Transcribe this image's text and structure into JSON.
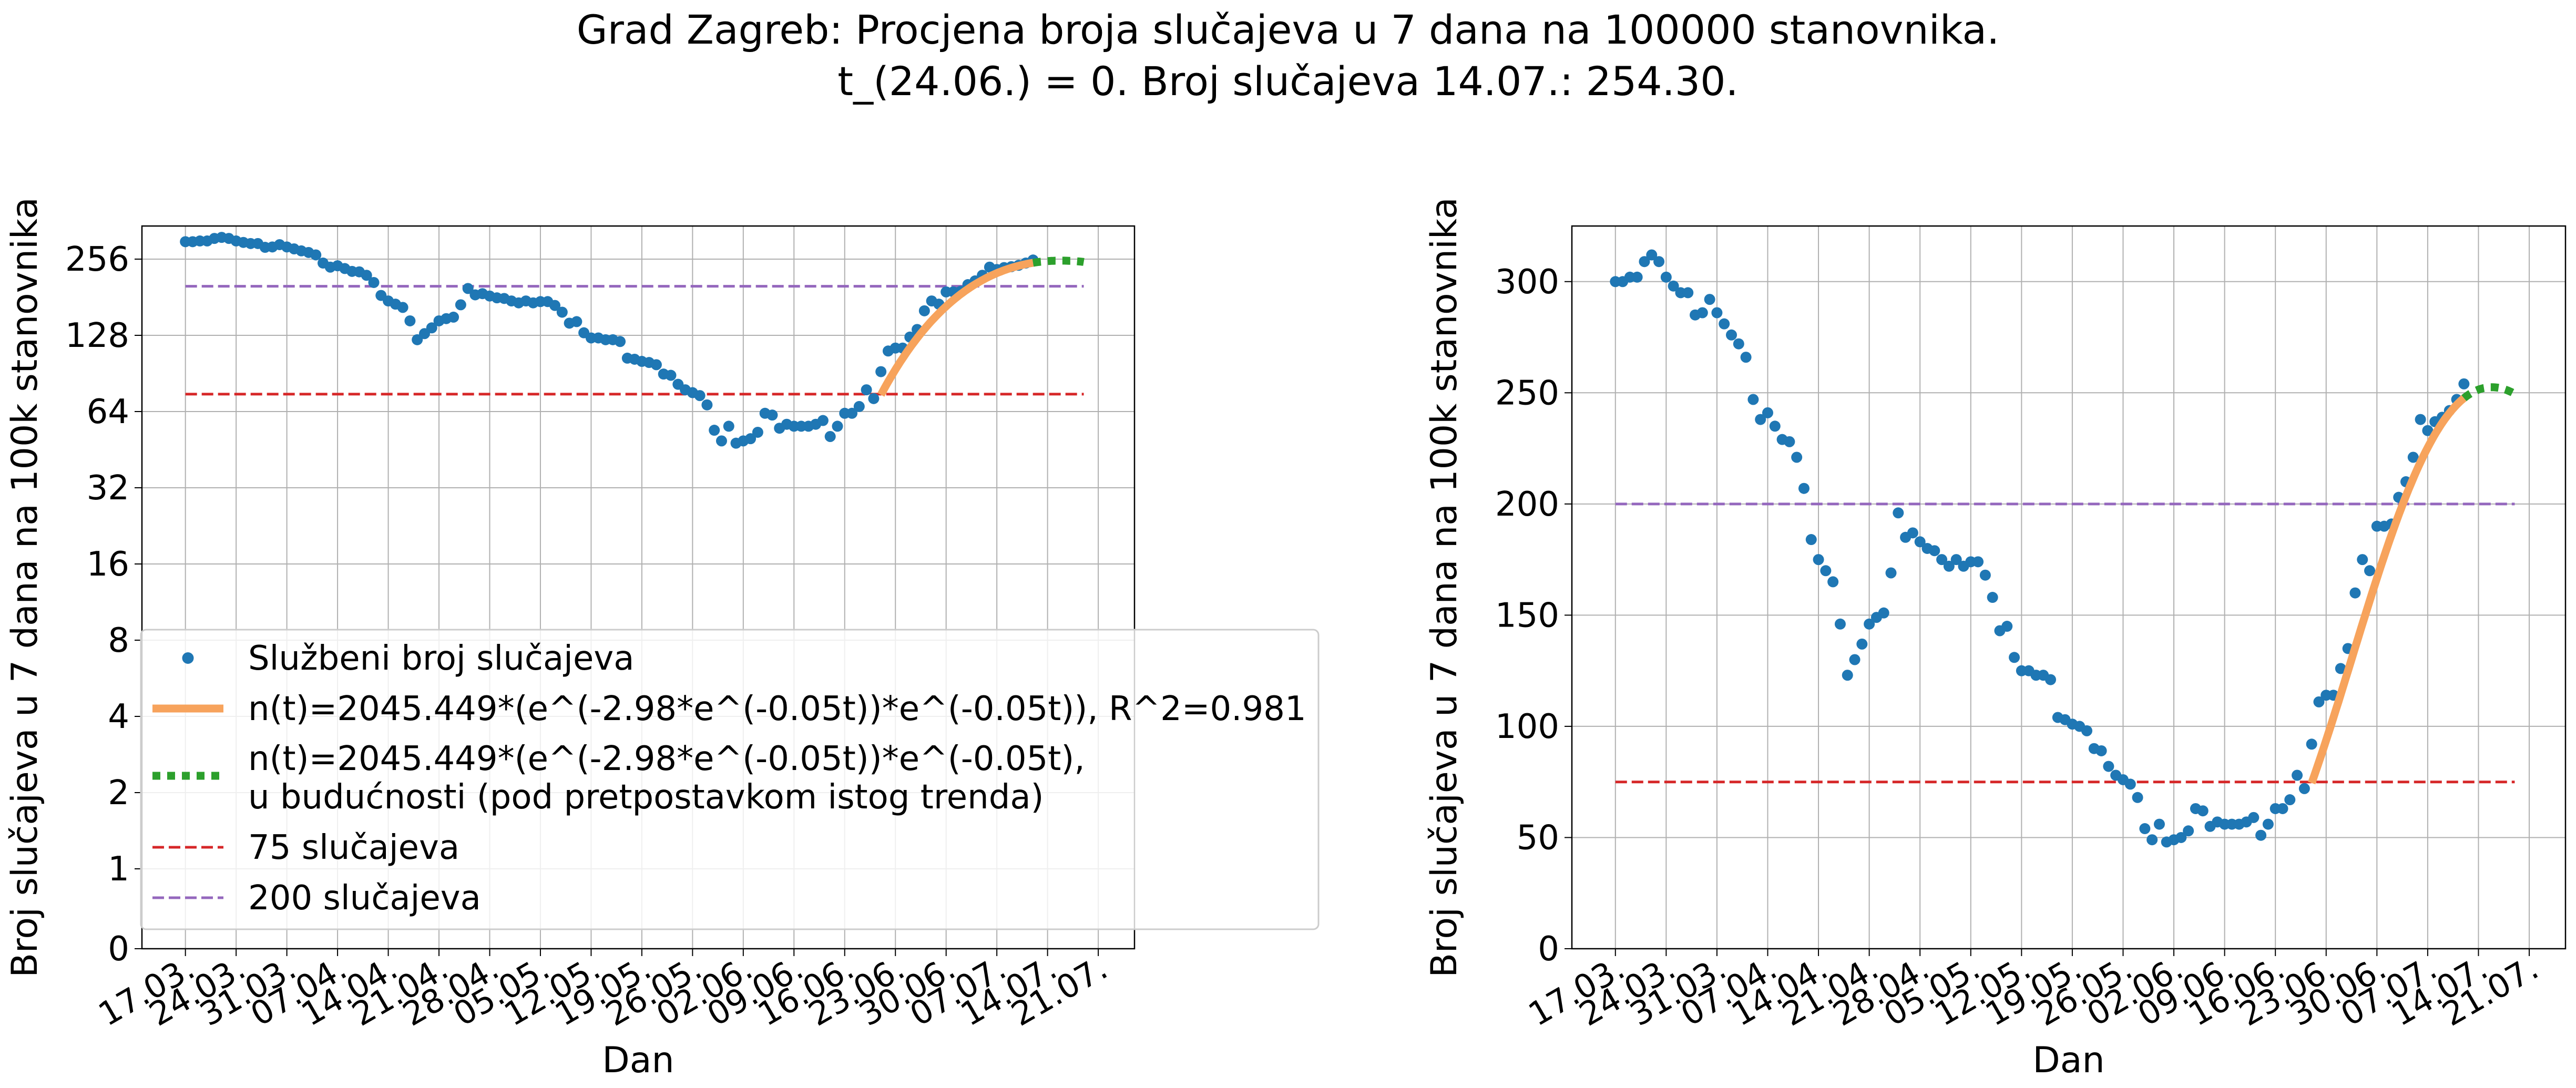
{
  "figure": {
    "title_line1": "Grad Zagreb: Procjena broja slučajeva u 7 dana na 100000 stanovnika.",
    "title_line2": "t_(24.06.) = 0. Broj slučajeva 14.07.: 254.30."
  },
  "colors": {
    "points": "#1f77b4",
    "fit": "#f7a35c",
    "future": "#2ca02c",
    "line75": "#d62728",
    "line200": "#9467bd",
    "grid": "#b0b0b0"
  },
  "chart_data": [
    {
      "type": "scatter",
      "yscale": "log2",
      "xlabel": "Dan",
      "ylabel": "Broj slučajeva u 7 dana na 100k stanovnika",
      "x_tick_labels": [
        "17.03.",
        "24.03.",
        "31.03.",
        "07.04.",
        "14.04.",
        "21.04.",
        "28.04.",
        "05.05.",
        "12.05.",
        "19.05.",
        "26.05.",
        "02.06.",
        "09.06.",
        "16.06.",
        "23.06.",
        "30.06.",
        "07.07.",
        "14.07.",
        "21.07."
      ],
      "y_tick_labels": [
        "0",
        "1",
        "2",
        "4",
        "8",
        "16",
        "32",
        "64",
        "128",
        "256"
      ],
      "grid": true,
      "legend_position": "lower-left",
      "legend": [
        "Službeni broj slučajeva",
        "n(t)=2045.449*(e^(-2.98*e^(-0.05t))*e^(-0.05t)), R^2=0.981",
        "n(t)=2045.449*(e^(-2.98*e^(-0.05t))*e^(-0.05t),",
        "u budućnosti (pod pretpostavkom istog trenda)",
        "75 slučajeva",
        "200 slučajeva"
      ]
    },
    {
      "type": "scatter",
      "yscale": "linear",
      "ylim": [
        0,
        325
      ],
      "xlabel": "Dan",
      "ylabel": "Broj slučajeva u 7 dana na 100k stanovnika",
      "x_tick_labels": [
        "17.03.",
        "24.03.",
        "31.03.",
        "07.04.",
        "14.04.",
        "21.04.",
        "28.04.",
        "05.05.",
        "12.05.",
        "19.05.",
        "26.05.",
        "02.06.",
        "09.06.",
        "16.06.",
        "23.06.",
        "30.06.",
        "07.07.",
        "14.07.",
        "21.07."
      ],
      "y_tick_labels": [
        "0",
        "50",
        "100",
        "150",
        "200",
        "250",
        "300"
      ],
      "grid": true
    }
  ],
  "series": {
    "x_day0": "17.03.",
    "points": [
      [
        0,
        300
      ],
      [
        1,
        300
      ],
      [
        2,
        302
      ],
      [
        3,
        302
      ],
      [
        4,
        309
      ],
      [
        5,
        312
      ],
      [
        6,
        309
      ],
      [
        7,
        302
      ],
      [
        8,
        298
      ],
      [
        9,
        295
      ],
      [
        10,
        295
      ],
      [
        11,
        285
      ],
      [
        12,
        286
      ],
      [
        13,
        292
      ],
      [
        14,
        286
      ],
      [
        15,
        281
      ],
      [
        16,
        276
      ],
      [
        17,
        272
      ],
      [
        18,
        266
      ],
      [
        19,
        247
      ],
      [
        20,
        238
      ],
      [
        21,
        241
      ],
      [
        22,
        235
      ],
      [
        23,
        229
      ],
      [
        24,
        228
      ],
      [
        25,
        221
      ],
      [
        26,
        207
      ],
      [
        27,
        184
      ],
      [
        28,
        175
      ],
      [
        29,
        170
      ],
      [
        30,
        165
      ],
      [
        31,
        146
      ],
      [
        32,
        123
      ],
      [
        33,
        130
      ],
      [
        34,
        137
      ],
      [
        35,
        146
      ],
      [
        36,
        149
      ],
      [
        37,
        151
      ],
      [
        38,
        169
      ],
      [
        39,
        196
      ],
      [
        40,
        185
      ],
      [
        41,
        187
      ],
      [
        42,
        183
      ],
      [
        43,
        180
      ],
      [
        44,
        179
      ],
      [
        45,
        175
      ],
      [
        46,
        172
      ],
      [
        47,
        175
      ],
      [
        48,
        172
      ],
      [
        49,
        174
      ],
      [
        50,
        174
      ],
      [
        51,
        168
      ],
      [
        52,
        158
      ],
      [
        53,
        143
      ],
      [
        54,
        145
      ],
      [
        55,
        131
      ],
      [
        56,
        125
      ],
      [
        57,
        125
      ],
      [
        58,
        123
      ],
      [
        59,
        123
      ],
      [
        60,
        121
      ],
      [
        61,
        104
      ],
      [
        62,
        103
      ],
      [
        63,
        101
      ],
      [
        64,
        100
      ],
      [
        65,
        98
      ],
      [
        66,
        90
      ],
      [
        67,
        89
      ],
      [
        68,
        82
      ],
      [
        69,
        78
      ],
      [
        70,
        76
      ],
      [
        71,
        74
      ],
      [
        72,
        68
      ],
      [
        73,
        54
      ],
      [
        74,
        49
      ],
      [
        75,
        56
      ],
      [
        76,
        48
      ],
      [
        77,
        49
      ],
      [
        78,
        50
      ],
      [
        79,
        53
      ],
      [
        80,
        63
      ],
      [
        81,
        62
      ],
      [
        82,
        55
      ],
      [
        83,
        57
      ],
      [
        84,
        56
      ],
      [
        85,
        56
      ],
      [
        86,
        56
      ],
      [
        87,
        57
      ],
      [
        88,
        59
      ],
      [
        89,
        51
      ],
      [
        90,
        56
      ],
      [
        91,
        63
      ],
      [
        92,
        63
      ],
      [
        93,
        67
      ],
      [
        94,
        78
      ],
      [
        95,
        72
      ],
      [
        96,
        92
      ],
      [
        97,
        111
      ],
      [
        98,
        114
      ],
      [
        99,
        114
      ],
      [
        100,
        126
      ],
      [
        101,
        135
      ],
      [
        102,
        160
      ],
      [
        103,
        175
      ],
      [
        104,
        170
      ],
      [
        105,
        190
      ],
      [
        106,
        190
      ],
      [
        107,
        191
      ],
      [
        108,
        203
      ],
      [
        109,
        210
      ],
      [
        110,
        221
      ],
      [
        111,
        238
      ],
      [
        112,
        233
      ],
      [
        113,
        237
      ],
      [
        114,
        239
      ],
      [
        115,
        242
      ],
      [
        116,
        247
      ],
      [
        117,
        254
      ]
    ],
    "fit": {
      "A": 2045.449,
      "b": 2.98,
      "c": 0.05,
      "x_t0": 99,
      "from_x": 96,
      "to_x": 117
    },
    "future": {
      "from_x": 117,
      "to_x": 124
    },
    "hline_75": 75,
    "hline_200": 200
  }
}
